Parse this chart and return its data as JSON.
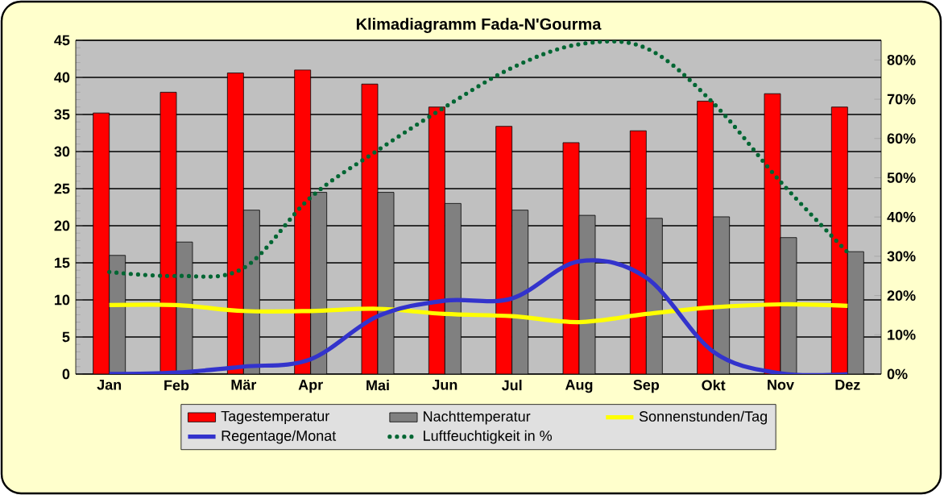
{
  "chart_data": {
    "type": "bar",
    "title": "Klimadiagramm Fada-N'Gourma",
    "categories": [
      "Jan",
      "Feb",
      "Mär",
      "Apr",
      "Mai",
      "Jun",
      "Jul",
      "Aug",
      "Sep",
      "Okt",
      "Nov",
      "Dez"
    ],
    "series": [
      {
        "name": "Tagestemperatur",
        "color": "#ff0000",
        "values": [
          35.2,
          38,
          40.6,
          41,
          39.1,
          36,
          33.4,
          31.2,
          32.8,
          36.8,
          37.8,
          36
        ]
      },
      {
        "name": "Nachttemperatur",
        "color": "#808080",
        "values": [
          16,
          17.8,
          22.1,
          24.5,
          24.5,
          23,
          22.1,
          21.4,
          21,
          21.2,
          18.4,
          16.5
        ]
      },
      {
        "name": "Sonnenstunden/Tag",
        "type": "line",
        "color": "#ffff00",
        "values": [
          9.3,
          9.3,
          8.5,
          8.5,
          8.8,
          8.1,
          7.8,
          7,
          8.1,
          9,
          9.4,
          9.2
        ]
      },
      {
        "name": "Regentage/Monat",
        "type": "line",
        "color": "#3333cc",
        "values": [
          0,
          0.2,
          1,
          2,
          7.8,
          9.9,
          10.2,
          15.2,
          13,
          3,
          0.1,
          0
        ]
      },
      {
        "name": "Luftfeuchtigkeit in %",
        "type": "line",
        "axis": "y2",
        "line_style": "dotted",
        "color": "#006633",
        "values": [
          26,
          25,
          27,
          45,
          57,
          68,
          78,
          84,
          83,
          69,
          49,
          31
        ]
      }
    ],
    "ylim": [
      0,
      45
    ],
    "yticks": [
      0,
      5,
      10,
      15,
      20,
      25,
      30,
      35,
      40,
      45
    ],
    "y2lim": [
      0,
      85
    ],
    "y2ticks": [
      {
        "value": 0,
        "label": "0%"
      },
      {
        "value": 10,
        "label": "10%"
      },
      {
        "value": 20,
        "label": "20%"
      },
      {
        "value": 30,
        "label": "30%"
      },
      {
        "value": 40,
        "label": "40%"
      },
      {
        "value": 50,
        "label": "50%"
      },
      {
        "value": 60,
        "label": "60%"
      },
      {
        "value": 70,
        "label": "70%"
      },
      {
        "value": 80,
        "label": "80%"
      }
    ],
    "grid": "y",
    "legend": "bottom",
    "marker": "none"
  }
}
